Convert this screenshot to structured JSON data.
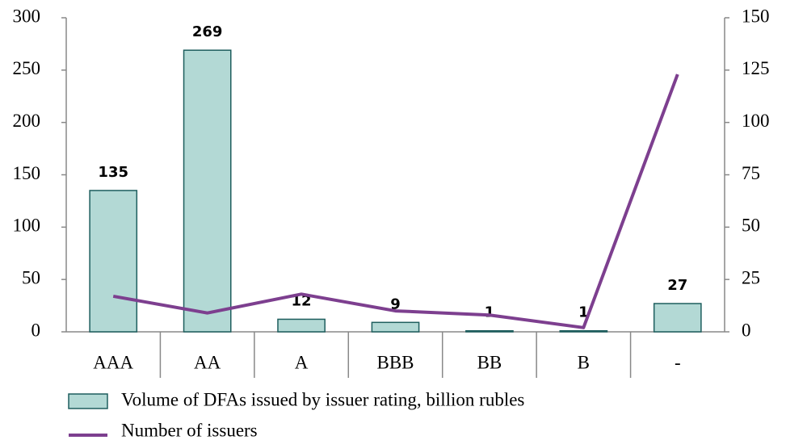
{
  "chart_data": {
    "type": "bar",
    "categories": [
      "AAA",
      "AA",
      "A",
      "BBB",
      "BB",
      "B",
      "-"
    ],
    "series": [
      {
        "name": "Volume of DFAs issued by issuer rating, billion rubles",
        "type": "bar",
        "color": "#b3d9d5",
        "values": [
          135,
          269,
          12,
          9,
          1,
          1,
          27
        ]
      },
      {
        "name": "Number of issuers",
        "type": "line",
        "axis": "y2",
        "color": "#7d3f8f",
        "values": [
          17,
          9,
          18,
          10,
          8,
          2,
          123
        ]
      }
    ],
    "ylim": [
      0,
      300
    ],
    "yticks": [
      0,
      50,
      100,
      150,
      200,
      250,
      300
    ],
    "y2lim": [
      0,
      150
    ],
    "y2ticks": [
      0,
      25,
      50,
      75,
      100,
      125,
      150
    ],
    "grid": false
  }
}
